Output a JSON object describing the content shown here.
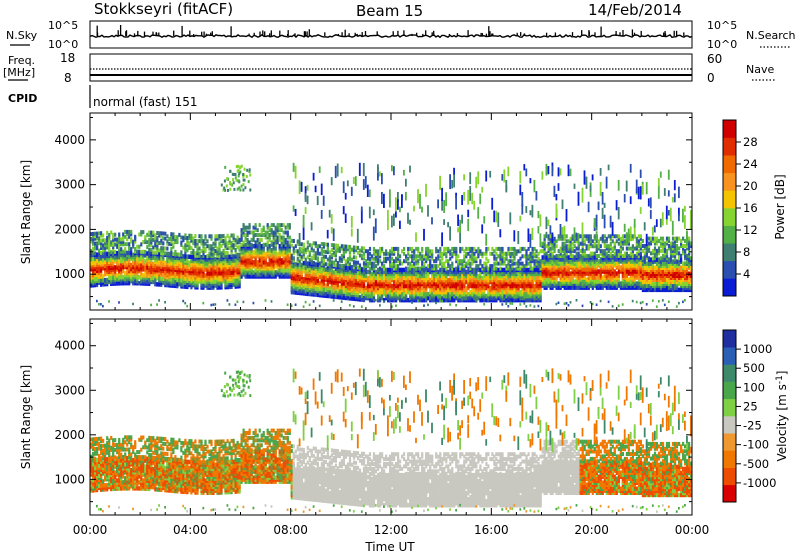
{
  "header": {
    "station": "Stokkseyri (fitACF)",
    "beam": "Beam 15",
    "date": "14/Feb/2014"
  },
  "status_panels": {
    "nsky_label": "N.Sky",
    "nsky_ticks": [
      "10^5",
      "10^0"
    ],
    "nsearch_label": "N.Search",
    "nsearch_ticks": [
      "10^5",
      "10^0"
    ],
    "freq_label_1": "Freq.",
    "freq_label_2": "[MHz]",
    "freq_ticks": [
      "18",
      "8"
    ],
    "nave_label": "Nave",
    "nave_ticks": [
      "60",
      "0"
    ],
    "cpid_label": "CPID",
    "cpid_value": "normal (fast) 151"
  },
  "chart_data": [
    {
      "type": "heatmap",
      "panel": "power",
      "ylabel": "Slant Range [km]",
      "y_ticks": [
        "1000",
        "2000",
        "3000",
        "4000"
      ],
      "ylim": [
        200,
        4600
      ],
      "colorbar": {
        "label": "Power [dB]",
        "ticks": [
          "4",
          "8",
          "12",
          "16",
          "20",
          "24",
          "28"
        ],
        "colors": [
          "#0a1cd4",
          "#2b4fb0",
          "#3f7f72",
          "#52b046",
          "#86d430",
          "#f5c400",
          "#f7931e",
          "#f06a00",
          "#e02e00",
          "#d10000"
        ]
      }
    },
    {
      "type": "heatmap",
      "panel": "velocity",
      "ylabel": "Slant Range [km]",
      "y_ticks": [
        "1000",
        "2000",
        "3000",
        "4000"
      ],
      "ylim": [
        200,
        4600
      ],
      "colorbar": {
        "label": "Velocity [m s",
        "label_sup": "-1",
        "label_end": "]",
        "ticks": [
          "1000",
          "500",
          "100",
          "25",
          "-25",
          "-100",
          "-500",
          "-1000"
        ],
        "colors": [
          "#1f2fa0",
          "#2a5fb5",
          "#3c8a6a",
          "#4aa64a",
          "#7fd044",
          "#c8c8c0",
          "#f09830",
          "#f07800",
          "#ee4c00",
          "#d80000"
        ]
      }
    }
  ],
  "x_axis": {
    "label": "Time UT",
    "ticks": [
      "00:00",
      "04:00",
      "08:00",
      "12:00",
      "16:00",
      "20:00",
      "00:00"
    ],
    "xlim_hours": [
      0,
      24
    ]
  }
}
